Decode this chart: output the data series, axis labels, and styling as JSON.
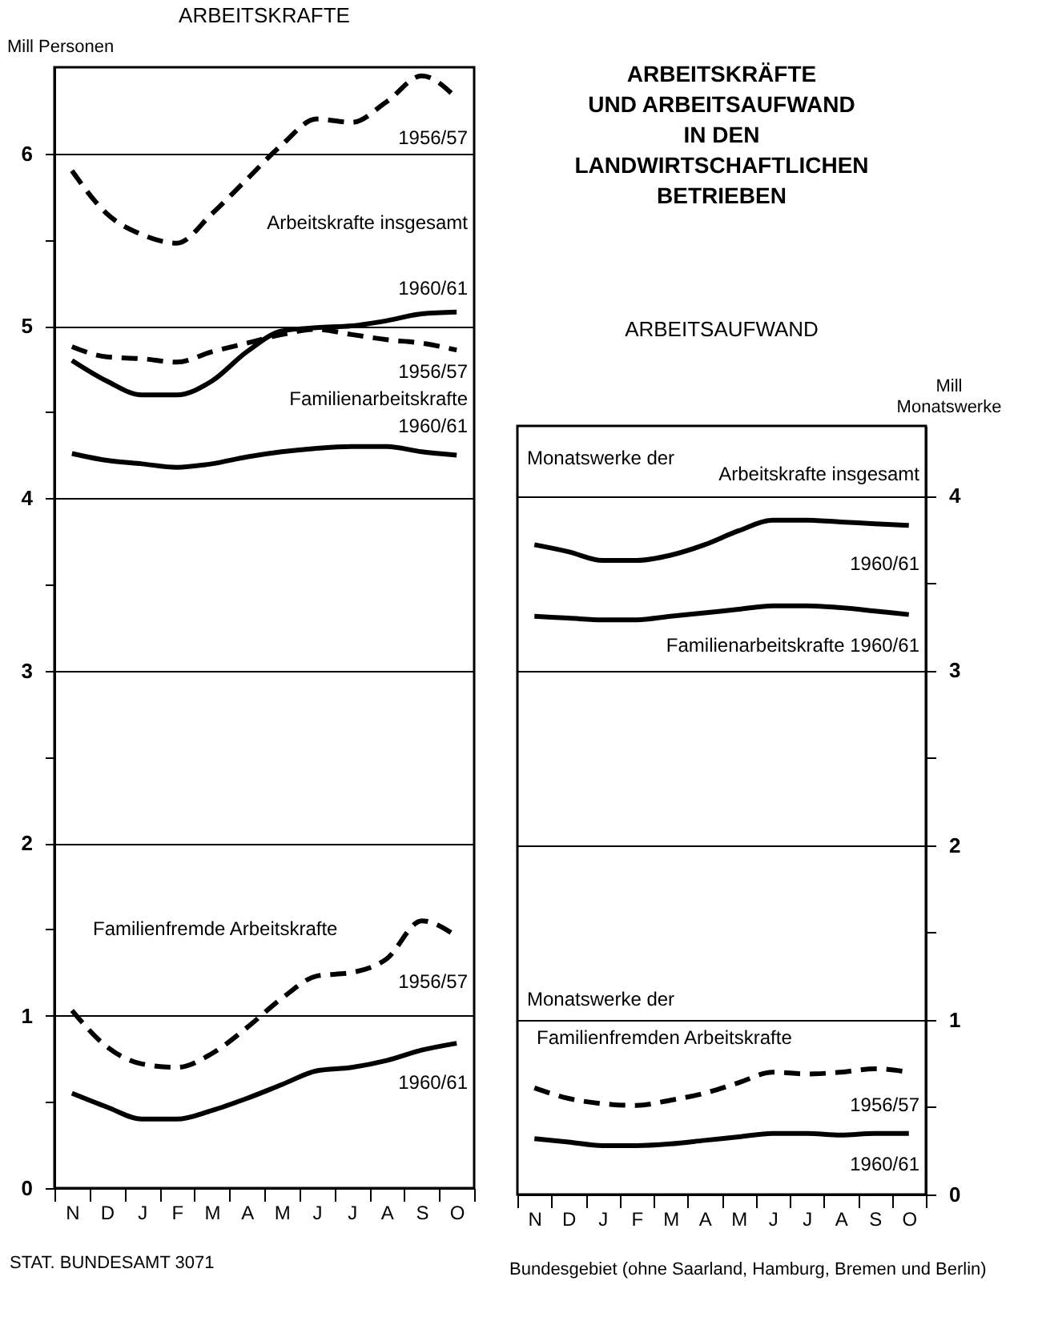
{
  "chart_data": [
    {
      "type": "line",
      "title": "ARBEITSKRAFTE",
      "ylabel": "Mill Personen",
      "categories": [
        "N",
        "D",
        "J",
        "F",
        "M",
        "A",
        "M",
        "J",
        "J",
        "A",
        "S",
        "O"
      ],
      "series": [
        {
          "color": "#000000",
          "line_style": "dashed",
          "values": [
            5.9,
            5.65,
            5.53,
            5.48,
            5.65,
            5.85,
            6.05,
            6.2,
            6.18,
            6.3,
            6.45,
            6.32
          ]
        },
        {
          "color": "#000000",
          "line_style": "solid",
          "values": [
            4.8,
            4.68,
            4.6,
            4.6,
            4.68,
            4.85,
            4.97,
            4.99,
            5.0,
            5.03,
            5.07,
            5.08
          ]
        },
        {
          "color": "#000000",
          "line_style": "dashed",
          "values": [
            4.88,
            4.82,
            4.81,
            4.79,
            4.85,
            4.9,
            4.95,
            4.98,
            4.95,
            4.92,
            4.9,
            4.86
          ]
        },
        {
          "color": "#000000",
          "line_style": "solid",
          "values": [
            4.26,
            4.22,
            4.2,
            4.18,
            4.2,
            4.24,
            4.27,
            4.29,
            4.3,
            4.3,
            4.27,
            4.25
          ]
        },
        {
          "color": "#000000",
          "line_style": "dashed",
          "values": [
            1.03,
            0.82,
            0.72,
            0.7,
            0.78,
            0.93,
            1.1,
            1.23,
            1.25,
            1.33,
            1.55,
            1.46
          ]
        },
        {
          "color": "#000000",
          "line_style": "solid",
          "values": [
            0.55,
            0.47,
            0.4,
            0.4,
            0.45,
            0.52,
            0.6,
            0.68,
            0.7,
            0.74,
            0.8,
            0.84
          ]
        }
      ],
      "ylim": [
        0,
        6.5
      ],
      "yticks": [
        0,
        {
          "value": 0.5,
          "label": null
        },
        1,
        {
          "value": 1.5,
          "label": null
        },
        2,
        {
          "value": 2.5,
          "label": null
        },
        3,
        {
          "value": 3.5,
          "label": null
        },
        4,
        {
          "value": 4.5,
          "label": null
        },
        5,
        {
          "value": 5.5,
          "label": null
        },
        6
      ],
      "grid": "y",
      "annotations": [
        "1956/57",
        "Arbeitskrafte insgesamt",
        "1960/61",
        "1956/57",
        "Familienarbeitskrafte",
        "1960/61",
        "Familienfremde Arbeitskrafte",
        "1956/57",
        "1960/61",
        "STAT. BUNDESAMT 3071"
      ]
    },
    {
      "type": "line",
      "title": "ARBEITSKRÄFTE\nUND ARBEITSAUFWAND\nIN DEN\nLANDWIRTSCHAFTLICHEN\nBETRIEBEN",
      "subtitle": "ARBEITSAUFWAND",
      "ylabel": "Mill\nMonatswerke",
      "categories": [
        "N",
        "D",
        "J",
        "F",
        "M",
        "A",
        "M",
        "J",
        "J",
        "A",
        "S",
        "O"
      ],
      "series": [
        {
          "color": "#000000",
          "line_style": "solid",
          "values": [
            3.72,
            3.68,
            3.63,
            3.63,
            3.66,
            3.72,
            3.8,
            3.86,
            3.86,
            3.85,
            3.84,
            3.83
          ]
        },
        {
          "color": "#000000",
          "line_style": "solid",
          "values": [
            3.31,
            3.3,
            3.29,
            3.29,
            3.31,
            3.33,
            3.35,
            3.37,
            3.37,
            3.36,
            3.34,
            3.32
          ]
        },
        {
          "color": "#000000",
          "line_style": "dashed",
          "values": [
            0.61,
            0.55,
            0.52,
            0.51,
            0.54,
            0.58,
            0.64,
            0.7,
            0.69,
            0.7,
            0.72,
            0.7
          ]
        },
        {
          "color": "#000000",
          "line_style": "solid",
          "values": [
            0.32,
            0.3,
            0.28,
            0.28,
            0.29,
            0.31,
            0.33,
            0.35,
            0.35,
            0.34,
            0.35,
            0.35
          ]
        }
      ],
      "ylim": [
        0,
        4.4
      ],
      "yticks": [
        0,
        {
          "value": 0.5,
          "label": null
        },
        1,
        {
          "value": 1.5,
          "label": null
        },
        2,
        {
          "value": 2.5,
          "label": null
        },
        3,
        {
          "value": 3.5,
          "label": null
        },
        4
      ],
      "grid": "y",
      "annotations": [
        "Monatswerke der",
        "Arbeitskrafte insgesamt",
        "1960/61",
        "Familienarbeitskrafte 1960/61",
        "Monatswerke der",
        "Familienfremden Arbeitskrafte",
        "1956/57",
        "1960/61",
        "Bundesgebiet (ohne Saarland, Hamburg, Bremen und Berlin)"
      ]
    }
  ]
}
